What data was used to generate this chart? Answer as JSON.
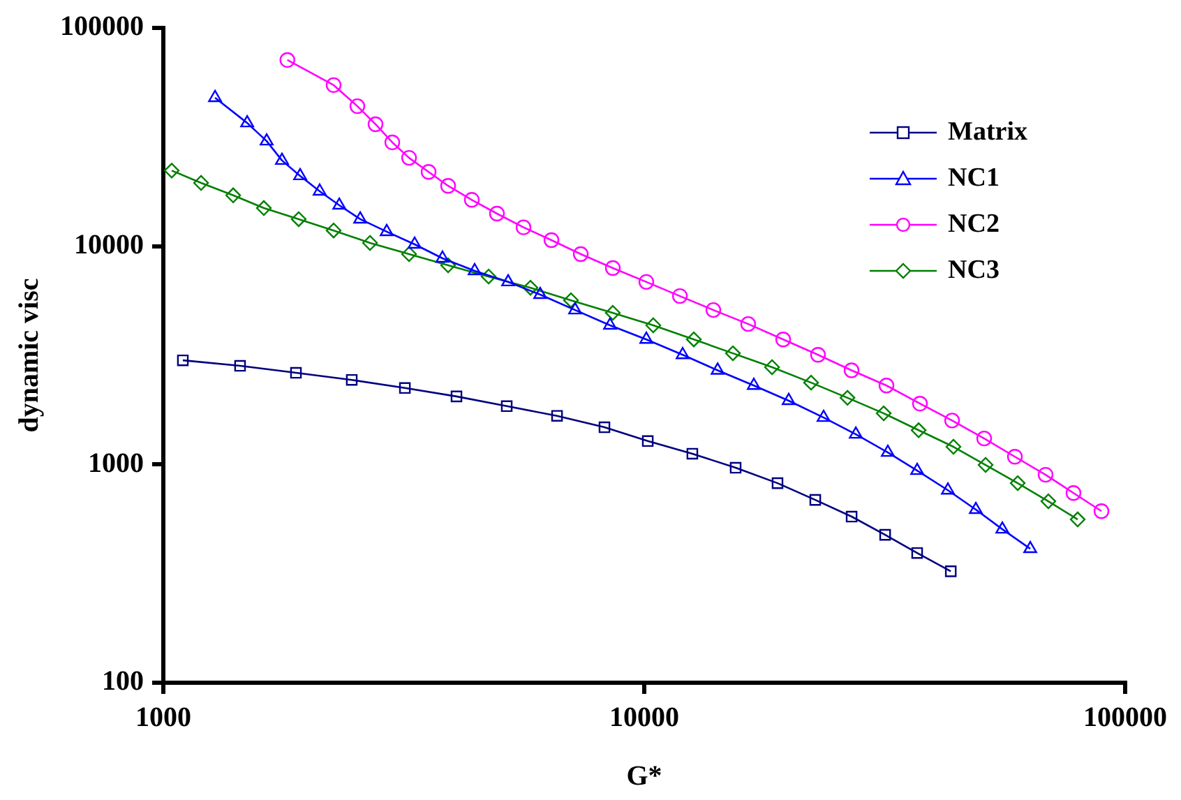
{
  "chart_data": {
    "type": "line",
    "xlabel": "G*",
    "ylabel": "dynamic visc",
    "log": "xy",
    "xlim": [
      1000,
      100000
    ],
    "ylim": [
      100,
      100000
    ],
    "xticks": [
      1000,
      10000,
      100000
    ],
    "yticks": [
      100,
      1000,
      10000,
      100000
    ],
    "grid": false,
    "legend": "top right",
    "line_style": "solid",
    "series": [
      {
        "name": "Matrix",
        "color": "#000080",
        "marker": "square",
        "x": [
          1098,
          1444,
          1887,
          2465,
          3179,
          4070,
          5177,
          6587,
          8266,
          10170,
          12590,
          15490,
          18930,
          22680,
          26990,
          31690,
          36940,
          43390
        ],
        "values": [
          3000,
          2830,
          2630,
          2440,
          2240,
          2050,
          1850,
          1670,
          1480,
          1280,
          1120,
          966,
          821,
          688,
          577,
          476,
          393,
          324
        ]
      },
      {
        "name": "NC1",
        "color": "#0000ff",
        "marker": "triangle",
        "x": [
          1281,
          1494,
          1640,
          1765,
          1925,
          2114,
          2322,
          2567,
          2914,
          3331,
          3806,
          4440,
          5212,
          6076,
          7183,
          8489,
          10100,
          12020,
          14210,
          16900,
          19970,
          23600,
          27540,
          32100,
          36940,
          42800,
          48920,
          55540,
          63480
        ],
        "values": [
          47900,
          36700,
          30300,
          24700,
          21000,
          17850,
          15400,
          13300,
          11650,
          10200,
          8800,
          7710,
          6860,
          6000,
          5100,
          4340,
          3740,
          3180,
          2700,
          2300,
          1960,
          1640,
          1375,
          1135,
          937,
          762,
          621,
          505,
          411
        ]
      },
      {
        "name": "NC2",
        "color": "#ff00ff",
        "marker": "circle",
        "x": [
          1811,
          2260,
          2532,
          2762,
          2993,
          3243,
          3561,
          3910,
          4380,
          4940,
          5610,
          6412,
          7379,
          8603,
          10100,
          11860,
          13920,
          16450,
          19450,
          22980,
          26980,
          31890,
          37440,
          43670,
          50920,
          58980,
          68310,
          78080,
          89270
        ],
        "values": [
          71300,
          54700,
          43800,
          36200,
          29900,
          25400,
          21900,
          18900,
          16300,
          14100,
          12200,
          10660,
          9200,
          7940,
          6860,
          5910,
          5100,
          4400,
          3740,
          3180,
          2700,
          2300,
          1900,
          1590,
          1315,
          1085,
          897,
          740,
          611
        ]
      },
      {
        "name": "NC3",
        "color": "#008000",
        "marker": "diamond",
        "x": [
          1041,
          1198,
          1397,
          1618,
          1912,
          2260,
          2690,
          3243,
          3910,
          4747,
          5800,
          7041,
          8603,
          10440,
          12680,
          15290,
          18440,
          22230,
          26460,
          31470,
          37200,
          43950,
          51260,
          59780,
          69230,
          79660
        ],
        "values": [
          22200,
          19500,
          17100,
          14950,
          13300,
          11800,
          10350,
          9200,
          8170,
          7260,
          6450,
          5650,
          4950,
          4340,
          3740,
          3230,
          2790,
          2370,
          2020,
          1715,
          1435,
          1205,
          995,
          821,
          678,
          560
        ]
      }
    ]
  }
}
